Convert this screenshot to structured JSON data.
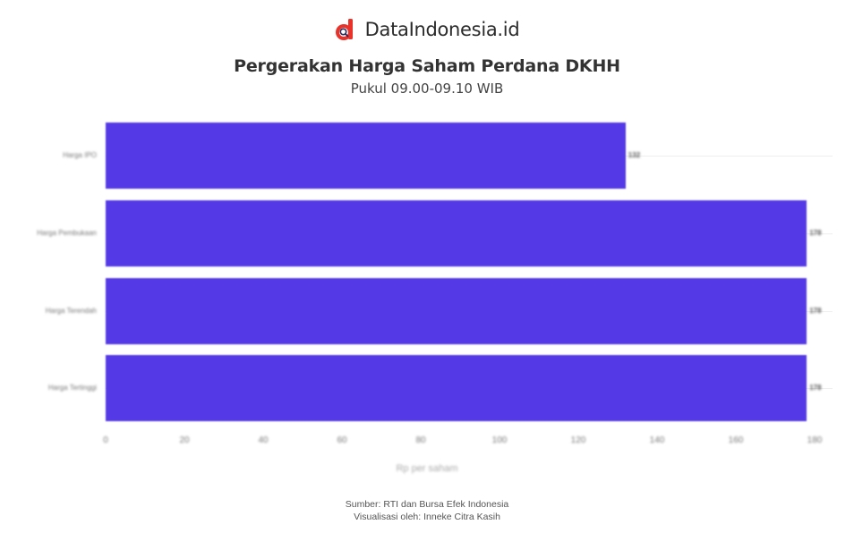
{
  "brand": {
    "name": "DataIndonesia.id",
    "logo_color": "#e8332a"
  },
  "header": {
    "title": "Pergerakan Harga Saham Perdana DKHH",
    "subtitle": "Pukul 09.00-09.10 WIB"
  },
  "footer": {
    "source": "Sumber: RTI dan Bursa Efek Indonesia",
    "credit": "Visualisasi oleh: Inneke Citra Kasih"
  },
  "chart_data": {
    "type": "bar",
    "orientation": "horizontal",
    "title": "Pergerakan Harga Saham Perdana DKHH",
    "subtitle": "Pukul 09.00-09.10 WIB",
    "categories": [
      "Harga IPO",
      "Harga Pembukaan",
      "Harga Terendah",
      "Harga Tertinggi"
    ],
    "values": [
      132,
      178,
      178,
      178
    ],
    "value_labels": [
      "132",
      "178",
      "178",
      "178"
    ],
    "bar_color": "#5439e6",
    "xlabel": "Rp per saham",
    "ylabel": "",
    "xlim": [
      0,
      184
    ],
    "xticks": [
      "0",
      "20",
      "40",
      "60",
      "80",
      "100",
      "120",
      "140",
      "160",
      "180"
    ],
    "grid": false,
    "legend": null
  }
}
